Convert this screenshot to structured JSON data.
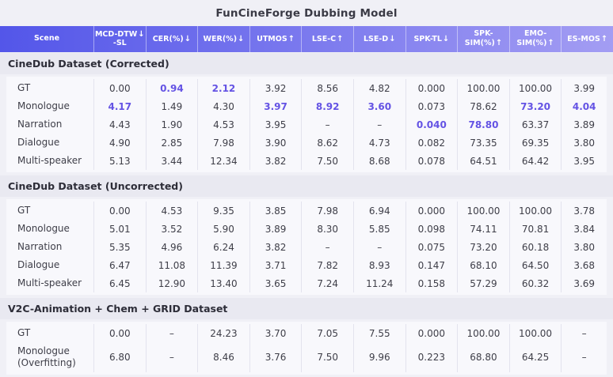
{
  "title": "FunCineForge Dubbing Model",
  "colors": {
    "page_bg": "#f0f0f6",
    "header_grad_left": "#5356e9",
    "header_grad_right": "#a39df3",
    "header_text": "#ffffff",
    "band_bg": "#e9e9f1",
    "band_text": "#2d2d38",
    "block_bg": "#f8f8fc",
    "divider": "#e3e3ee",
    "cell_text": "#3e3e48",
    "highlight": "#6453e4",
    "title_text": "#3a3a45"
  },
  "table": {
    "columns": [
      {
        "label": "Scene",
        "sub": "",
        "arrow": ""
      },
      {
        "label": "MCD-DTW",
        "sub": "-SL",
        "arrow": "↓"
      },
      {
        "label": "CER(%)",
        "sub": "",
        "arrow": "↓"
      },
      {
        "label": "WER(%)",
        "sub": "",
        "arrow": "↓"
      },
      {
        "label": "UTMOS",
        "sub": "",
        "arrow": "↑"
      },
      {
        "label": "LSE-C",
        "sub": "",
        "arrow": "↑"
      },
      {
        "label": "LSE-D",
        "sub": "",
        "arrow": "↓"
      },
      {
        "label": "SPK-TL",
        "sub": "",
        "arrow": "↓"
      },
      {
        "label": "SPK-SIM(%)",
        "sub": "",
        "arrow": "↑"
      },
      {
        "label": "EMO-SIM(%)",
        "sub": "",
        "arrow": "↑"
      },
      {
        "label": "ES-MOS",
        "sub": "",
        "arrow": "↑"
      }
    ],
    "sections": [
      {
        "heading": "CineDub Dataset (Corrected)",
        "rows": [
          {
            "scene": "GT",
            "cells": [
              "0.00",
              "0.94",
              "2.12",
              "3.92",
              "8.56",
              "4.82",
              "0.000",
              "100.00",
              "100.00",
              "3.99"
            ],
            "highlight": [
              1,
              2
            ]
          },
          {
            "scene": "Monologue",
            "cells": [
              "4.17",
              "1.49",
              "4.30",
              "3.97",
              "8.92",
              "3.60",
              "0.073",
              "78.62",
              "73.20",
              "4.04"
            ],
            "highlight": [
              0,
              3,
              4,
              5,
              8,
              9
            ]
          },
          {
            "scene": "Narration",
            "cells": [
              "4.43",
              "1.90",
              "4.53",
              "3.95",
              "–",
              "–",
              "0.040",
              "78.80",
              "63.37",
              "3.89"
            ],
            "highlight": [
              6,
              7
            ]
          },
          {
            "scene": "Dialogue",
            "cells": [
              "4.90",
              "2.85",
              "7.98",
              "3.90",
              "8.62",
              "4.73",
              "0.082",
              "73.35",
              "69.35",
              "3.80"
            ],
            "highlight": []
          },
          {
            "scene": "Multi-speaker",
            "cells": [
              "5.13",
              "3.44",
              "12.34",
              "3.82",
              "7.50",
              "8.68",
              "0.078",
              "64.51",
              "64.42",
              "3.95"
            ],
            "highlight": []
          }
        ]
      },
      {
        "heading": "CineDub Dataset (Uncorrected)",
        "rows": [
          {
            "scene": "GT",
            "cells": [
              "0.00",
              "4.53",
              "9.35",
              "3.85",
              "7.98",
              "6.94",
              "0.000",
              "100.00",
              "100.00",
              "3.78"
            ],
            "highlight": []
          },
          {
            "scene": "Monologue",
            "cells": [
              "5.01",
              "3.52",
              "5.90",
              "3.89",
              "8.30",
              "5.85",
              "0.098",
              "74.11",
              "70.81",
              "3.84"
            ],
            "highlight": []
          },
          {
            "scene": "Narration",
            "cells": [
              "5.35",
              "4.96",
              "6.24",
              "3.82",
              "–",
              "–",
              "0.075",
              "73.20",
              "60.18",
              "3.80"
            ],
            "highlight": []
          },
          {
            "scene": "Dialogue",
            "cells": [
              "6.47",
              "11.08",
              "11.39",
              "3.71",
              "7.82",
              "8.93",
              "0.147",
              "68.10",
              "64.50",
              "3.68"
            ],
            "highlight": []
          },
          {
            "scene": "Multi-speaker",
            "cells": [
              "6.45",
              "12.90",
              "13.40",
              "3.65",
              "7.24",
              "11.24",
              "0.158",
              "57.29",
              "60.32",
              "3.69"
            ],
            "highlight": []
          }
        ]
      },
      {
        "heading": "V2C-Animation + Chem + GRID Dataset",
        "rows": [
          {
            "scene": "GT",
            "cells": [
              "0.00",
              "–",
              "24.23",
              "3.70",
              "7.05",
              "7.55",
              "0.000",
              "100.00",
              "100.00",
              "–"
            ],
            "highlight": []
          },
          {
            "scene": "Monologue (Overfitting)",
            "cells": [
              "6.80",
              "–",
              "8.46",
              "3.76",
              "7.50",
              "9.96",
              "0.223",
              "68.80",
              "64.25",
              "–"
            ],
            "highlight": [],
            "tall": true
          }
        ]
      }
    ]
  }
}
